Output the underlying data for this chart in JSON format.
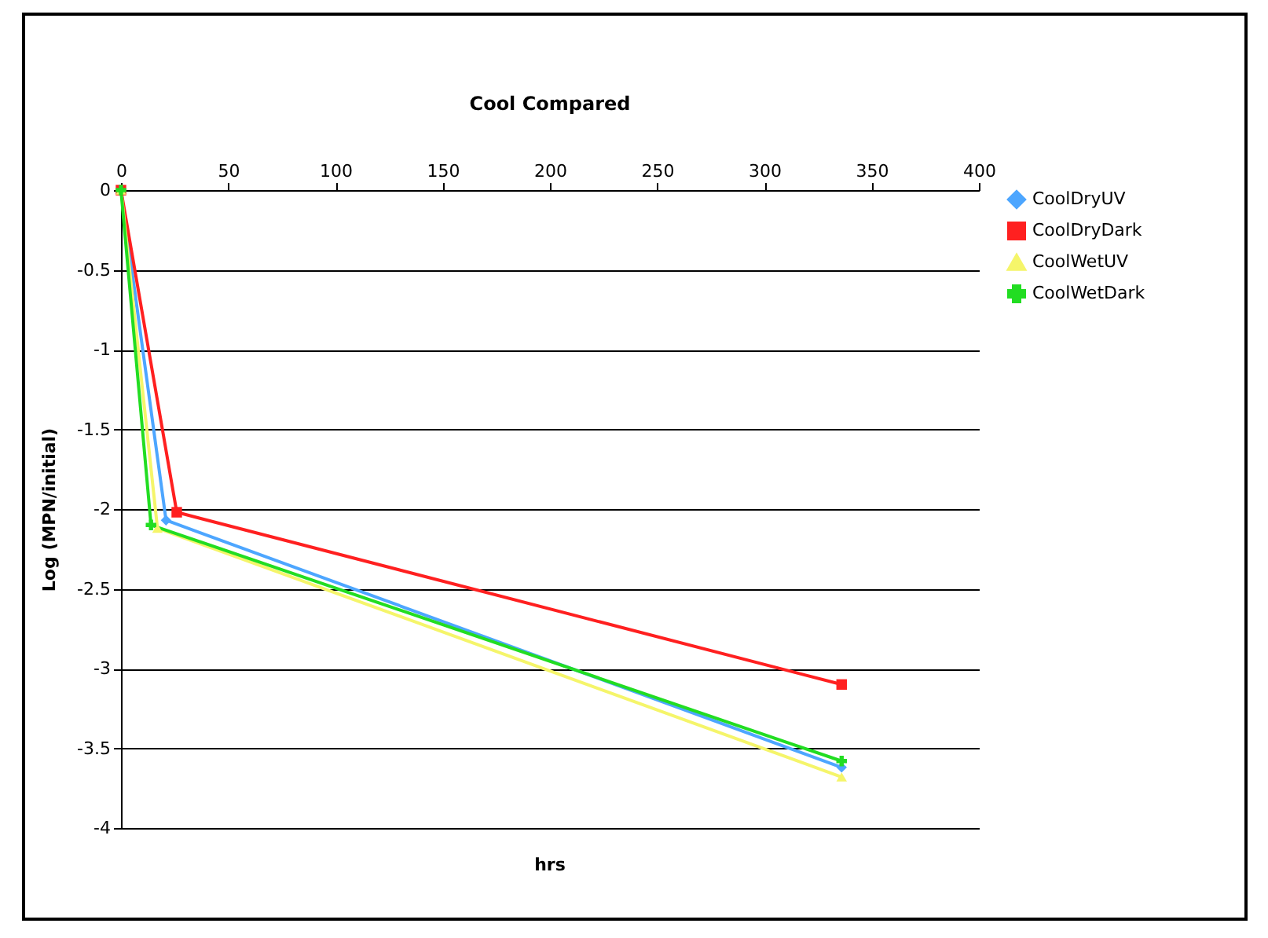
{
  "chart_data": {
    "type": "line",
    "title": "Cool Compared",
    "xlabel": "hrs",
    "ylabel": "Log (MPN/initial)",
    "series": [
      {
        "name": "CoolDryUV",
        "color": "#4da6ff",
        "marker": "diamond",
        "x": [
          0,
          21,
          336
        ],
        "values": [
          0,
          -2.07,
          -3.62
        ]
      },
      {
        "name": "CoolDryDark",
        "color": "#ff2020",
        "marker": "square",
        "x": [
          0,
          26,
          336
        ],
        "values": [
          0,
          -2.02,
          -3.1
        ]
      },
      {
        "name": "CoolWetUV",
        "color": "#f5f56a",
        "marker": "triangle",
        "x": [
          0,
          17,
          336
        ],
        "values": [
          0,
          -2.12,
          -3.68
        ]
      },
      {
        "name": "CoolWetDark",
        "color": "#22dd22",
        "marker": "cross",
        "x": [
          0,
          14,
          336
        ],
        "values": [
          0,
          -2.1,
          -3.58
        ]
      }
    ],
    "xlim": [
      0,
      400
    ],
    "xticks": [
      0,
      50,
      100,
      150,
      200,
      250,
      300,
      350,
      400
    ],
    "ylim": [
      -4,
      0
    ],
    "yticks": [
      -4,
      -3.5,
      -3,
      -2.5,
      -2,
      -1.5,
      -1,
      -0.5,
      0
    ],
    "grid": "y",
    "legend": "right",
    "line_style": "solid"
  }
}
